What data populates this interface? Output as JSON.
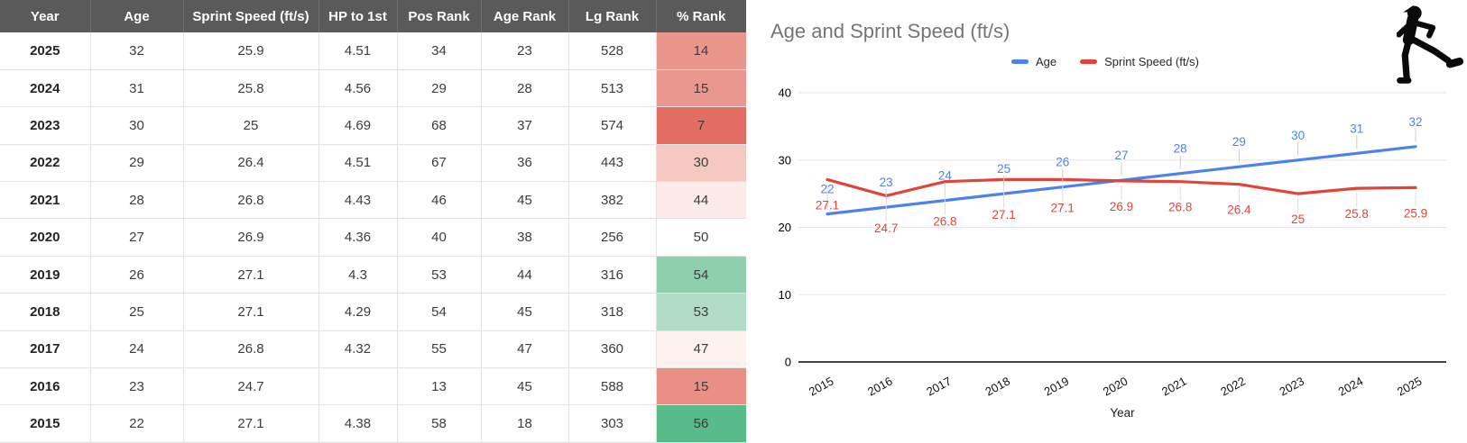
{
  "table": {
    "headers": [
      "Year",
      "Age",
      "Sprint Speed (ft/s)",
      "HP to 1st",
      "Pos Rank",
      "Age Rank",
      "Lg Rank",
      "% Rank"
    ],
    "rows": [
      {
        "year": "2025",
        "age": "32",
        "sprint_speed": "25.9",
        "hp_to_1st": "4.51",
        "pos_rank": "34",
        "age_rank": "23",
        "lg_rank": "528",
        "pct_rank": "14",
        "pct_bg": "#eb968d"
      },
      {
        "year": "2024",
        "age": "31",
        "sprint_speed": "25.8",
        "hp_to_1st": "4.56",
        "pos_rank": "29",
        "age_rank": "28",
        "lg_rank": "513",
        "pct_rank": "15",
        "pct_bg": "#ea988f"
      },
      {
        "year": "2023",
        "age": "30",
        "sprint_speed": "25",
        "hp_to_1st": "4.69",
        "pos_rank": "68",
        "age_rank": "37",
        "lg_rank": "574",
        "pct_rank": "7",
        "pct_bg": "#e36d62"
      },
      {
        "year": "2022",
        "age": "29",
        "sprint_speed": "26.4",
        "hp_to_1st": "4.51",
        "pos_rank": "67",
        "age_rank": "36",
        "lg_rank": "443",
        "pct_rank": "30",
        "pct_bg": "#f5c8c2"
      },
      {
        "year": "2021",
        "age": "28",
        "sprint_speed": "26.8",
        "hp_to_1st": "4.43",
        "pos_rank": "46",
        "age_rank": "45",
        "lg_rank": "382",
        "pct_rank": "44",
        "pct_bg": "#fcebe9"
      },
      {
        "year": "2020",
        "age": "27",
        "sprint_speed": "26.9",
        "hp_to_1st": "4.36",
        "pos_rank": "40",
        "age_rank": "38",
        "lg_rank": "256",
        "pct_rank": "50",
        "pct_bg": "#ffffff"
      },
      {
        "year": "2019",
        "age": "26",
        "sprint_speed": "27.1",
        "hp_to_1st": "4.3",
        "pos_rank": "53",
        "age_rank": "44",
        "lg_rank": "316",
        "pct_rank": "54",
        "pct_bg": "#8ed0ad"
      },
      {
        "year": "2018",
        "age": "25",
        "sprint_speed": "27.1",
        "hp_to_1st": "4.29",
        "pos_rank": "54",
        "age_rank": "45",
        "lg_rank": "318",
        "pct_rank": "53",
        "pct_bg": "#b3dcc6"
      },
      {
        "year": "2017",
        "age": "24",
        "sprint_speed": "26.8",
        "hp_to_1st": "4.32",
        "pos_rank": "55",
        "age_rank": "47",
        "lg_rank": "360",
        "pct_rank": "47",
        "pct_bg": "#fdf2f0"
      },
      {
        "year": "2016",
        "age": "23",
        "sprint_speed": "24.7",
        "hp_to_1st": "",
        "pos_rank": "13",
        "age_rank": "45",
        "lg_rank": "588",
        "pct_rank": "15",
        "pct_bg": "#e98f85"
      },
      {
        "year": "2015",
        "age": "22",
        "sprint_speed": "27.1",
        "hp_to_1st": "4.38",
        "pos_rank": "58",
        "age_rank": "18",
        "lg_rank": "303",
        "pct_rank": "56",
        "pct_bg": "#57bb8a"
      }
    ],
    "header_bg": "#5a5a5a"
  },
  "chart": {
    "title": "Age and Sprint Speed (ft/s)",
    "title_color": "#757575"
  },
  "chart_data": {
    "type": "line",
    "x": [
      2015,
      2016,
      2017,
      2018,
      2019,
      2020,
      2021,
      2022,
      2023,
      2024,
      2025
    ],
    "series": [
      {
        "name": "Age",
        "color": "#4d82ec",
        "values": [
          22,
          23,
          24,
          25,
          26,
          27,
          28,
          29,
          30,
          31,
          32
        ]
      },
      {
        "name": "Sprint Speed (ft/s)",
        "color": "#e2443a",
        "values": [
          27.1,
          24.7,
          26.8,
          27.1,
          27.1,
          26.9,
          26.8,
          26.4,
          25,
          25.8,
          25.9
        ]
      }
    ],
    "title": "Age and Sprint Speed (ft/s)",
    "xlabel": "Year",
    "ylabel": "",
    "ylim": [
      0,
      40
    ],
    "yticks": [
      0,
      10,
      20,
      30,
      40
    ],
    "legend_position": "top",
    "grid": true,
    "point_labels": true
  },
  "icon": {
    "runner": "runner-icon"
  }
}
